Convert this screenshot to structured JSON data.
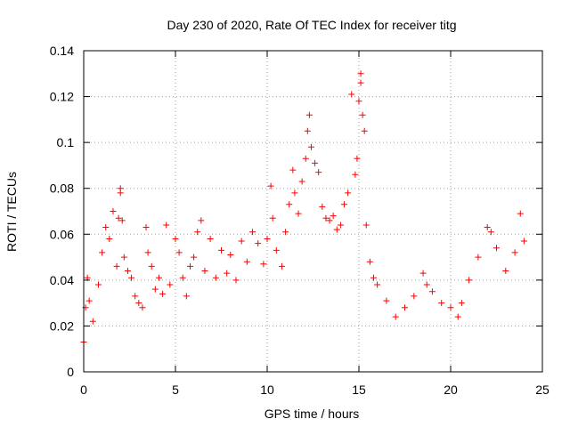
{
  "chart_data": {
    "type": "scatter",
    "title": "Day 230 of 2020, Rate Of TEC Index for receiver titg",
    "xlabel": "GPS time / hours",
    "ylabel": "ROTI / TECUs",
    "xlim": [
      0,
      25
    ],
    "ylim": [
      0,
      0.14
    ],
    "xticks": [
      0,
      5,
      10,
      15,
      20,
      25
    ],
    "yticks": [
      0,
      0.02,
      0.04,
      0.06,
      0.08,
      0.1,
      0.12,
      0.14
    ],
    "xtick_labels": [
      "0",
      "5",
      "10",
      "15",
      "20",
      "25"
    ],
    "ytick_labels": [
      "0",
      "0.02",
      "0.04",
      "0.06",
      "0.08",
      "0.1",
      "0.12",
      "0.14"
    ],
    "grid": true,
    "marker": "+",
    "color": "#ff0000",
    "series": [
      {
        "name": "ROTI",
        "points": [
          [
            0.0,
            0.013
          ],
          [
            0.1,
            0.028
          ],
          [
            0.2,
            0.041
          ],
          [
            0.3,
            0.031
          ],
          [
            0.5,
            0.022
          ],
          [
            0.8,
            0.038
          ],
          [
            1.0,
            0.052
          ],
          [
            1.2,
            0.063
          ],
          [
            1.4,
            0.058
          ],
          [
            1.6,
            0.07
          ],
          [
            1.8,
            0.046
          ],
          [
            1.9,
            0.067
          ],
          [
            2.0,
            0.078
          ],
          [
            2.0,
            0.08
          ],
          [
            2.1,
            0.066
          ],
          [
            2.2,
            0.05
          ],
          [
            2.4,
            0.044
          ],
          [
            2.6,
            0.041
          ],
          [
            2.8,
            0.033
          ],
          [
            3.0,
            0.03
          ],
          [
            3.2,
            0.028
          ],
          [
            3.4,
            0.063
          ],
          [
            3.5,
            0.052
          ],
          [
            3.7,
            0.046
          ],
          [
            3.9,
            0.036
          ],
          [
            4.1,
            0.041
          ],
          [
            4.3,
            0.034
          ],
          [
            4.5,
            0.064
          ],
          [
            4.7,
            0.038
          ],
          [
            5.0,
            0.058
          ],
          [
            5.2,
            0.052
          ],
          [
            5.4,
            0.041
          ],
          [
            5.6,
            0.033
          ],
          [
            5.8,
            0.046
          ],
          [
            6.0,
            0.05
          ],
          [
            6.2,
            0.061
          ],
          [
            6.4,
            0.066
          ],
          [
            6.6,
            0.044
          ],
          [
            6.9,
            0.058
          ],
          [
            7.2,
            0.041
          ],
          [
            7.5,
            0.053
          ],
          [
            7.8,
            0.043
          ],
          [
            8.0,
            0.051
          ],
          [
            8.3,
            0.04
          ],
          [
            8.6,
            0.057
          ],
          [
            8.9,
            0.048
          ],
          [
            9.2,
            0.061
          ],
          [
            9.5,
            0.056
          ],
          [
            9.8,
            0.047
          ],
          [
            10.0,
            0.058
          ],
          [
            10.2,
            0.081
          ],
          [
            10.3,
            0.067
          ],
          [
            10.5,
            0.053
          ],
          [
            10.8,
            0.046
          ],
          [
            11.0,
            0.061
          ],
          [
            11.2,
            0.073
          ],
          [
            11.4,
            0.088
          ],
          [
            11.5,
            0.078
          ],
          [
            11.7,
            0.069
          ],
          [
            11.9,
            0.083
          ],
          [
            12.1,
            0.093
          ],
          [
            12.2,
            0.105
          ],
          [
            12.3,
            0.112
          ],
          [
            12.4,
            0.098
          ],
          [
            12.6,
            0.091
          ],
          [
            12.8,
            0.087
          ],
          [
            13.0,
            0.072
          ],
          [
            13.2,
            0.067
          ],
          [
            13.4,
            0.066
          ],
          [
            13.6,
            0.068
          ],
          [
            13.8,
            0.062
          ],
          [
            14.0,
            0.064
          ],
          [
            14.2,
            0.073
          ],
          [
            14.4,
            0.078
          ],
          [
            14.6,
            0.121
          ],
          [
            14.8,
            0.086
          ],
          [
            14.9,
            0.093
          ],
          [
            15.0,
            0.118
          ],
          [
            15.1,
            0.126
          ],
          [
            15.1,
            0.13
          ],
          [
            15.2,
            0.112
          ],
          [
            15.3,
            0.105
          ],
          [
            15.4,
            0.064
          ],
          [
            15.6,
            0.048
          ],
          [
            15.8,
            0.041
          ],
          [
            16.0,
            0.038
          ],
          [
            16.5,
            0.031
          ],
          [
            17.0,
            0.024
          ],
          [
            17.5,
            0.028
          ],
          [
            18.0,
            0.033
          ],
          [
            18.5,
            0.043
          ],
          [
            18.7,
            0.038
          ],
          [
            19.0,
            0.035
          ],
          [
            19.5,
            0.03
          ],
          [
            20.0,
            0.028
          ],
          [
            20.4,
            0.024
          ],
          [
            20.6,
            0.03
          ],
          [
            21.0,
            0.04
          ],
          [
            21.5,
            0.05
          ],
          [
            22.0,
            0.063
          ],
          [
            22.2,
            0.061
          ],
          [
            22.5,
            0.054
          ],
          [
            23.0,
            0.044
          ],
          [
            23.5,
            0.052
          ],
          [
            23.8,
            0.069
          ],
          [
            24.0,
            0.057
          ]
        ]
      }
    ]
  }
}
